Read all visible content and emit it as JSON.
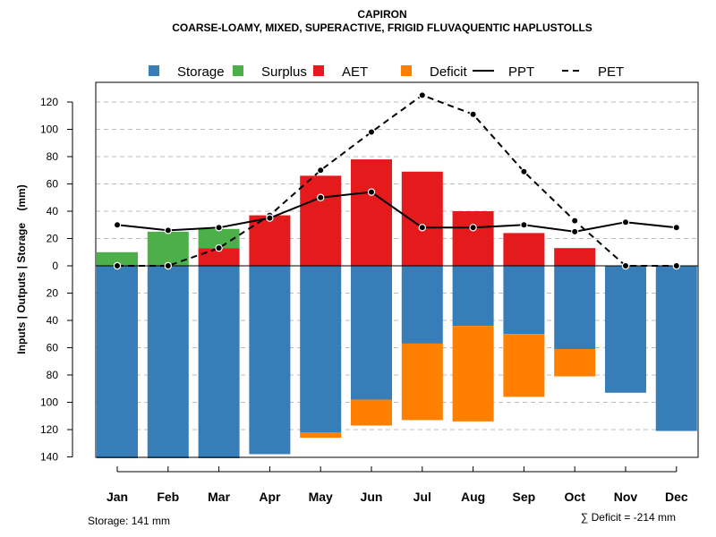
{
  "chart_data": {
    "type": "bar",
    "title": "CAPIRON",
    "subtitle": "COARSE-LOAMY, MIXED, SUPERACTIVE, FRIGID FLUVAQUENTIC HAPLUSTOLLS",
    "ylabel": "Inputs | Outputs | Storage    (mm)",
    "categories": [
      "Jan",
      "Feb",
      "Mar",
      "Apr",
      "May",
      "Jun",
      "Jul",
      "Aug",
      "Sep",
      "Oct",
      "Nov",
      "Dec"
    ],
    "ylim": [
      -140,
      130
    ],
    "yticks": [
      120,
      100,
      80,
      60,
      40,
      20,
      0,
      -20,
      -40,
      -60,
      -80,
      -100,
      -120,
      -140
    ],
    "ytick_labels": [
      "120",
      "100",
      "80",
      "60",
      "40",
      "20",
      "0",
      "20",
      "40",
      "60",
      "80",
      "100",
      "120",
      "140"
    ],
    "grid": true,
    "legend": [
      {
        "name": "Storage",
        "kind": "square",
        "color": "#377EB8"
      },
      {
        "name": "Surplus",
        "kind": "square",
        "color": "#4DAF4A"
      },
      {
        "name": "AET",
        "kind": "square",
        "color": "#E41A1C"
      },
      {
        "name": "Deficit",
        "kind": "square",
        "color": "#FF7F00"
      },
      {
        "name": "PPT",
        "kind": "line",
        "color": "#000000"
      },
      {
        "name": "PET",
        "kind": "dashed",
        "color": "#000000"
      }
    ],
    "series": [
      {
        "name": "AET",
        "color": "#E41A1C",
        "values": [
          0,
          0,
          13,
          37,
          66,
          78,
          69,
          40,
          24,
          13,
          0,
          0
        ]
      },
      {
        "name": "Surplus",
        "color": "#4DAF4A",
        "values": [
          10,
          25,
          14,
          0,
          0,
          0,
          0,
          0,
          0,
          0,
          0,
          0
        ]
      },
      {
        "name": "Storage",
        "color": "#377EB8",
        "values": [
          -141,
          -141,
          -141,
          -138,
          -122,
          -98,
          -57,
          -44,
          -50,
          -61,
          -93,
          -121
        ]
      },
      {
        "name": "Deficit",
        "color": "#FF7F00",
        "values": [
          0,
          0,
          0,
          0,
          -4,
          -19,
          -56,
          -70,
          -46,
          -20,
          0,
          0
        ]
      },
      {
        "name": "PPT",
        "color": "#000000",
        "values": [
          30,
          26,
          28,
          35,
          50,
          54,
          28,
          28,
          30,
          25,
          32,
          28
        ]
      },
      {
        "name": "PET",
        "color": "#000000",
        "values": [
          0,
          0,
          13,
          37,
          70,
          98,
          125,
          111,
          69,
          33,
          0,
          0
        ]
      }
    ],
    "annotations": {
      "storage": "Storage: 141 mm",
      "deficit": "∑ Deficit = -214 mm"
    }
  }
}
